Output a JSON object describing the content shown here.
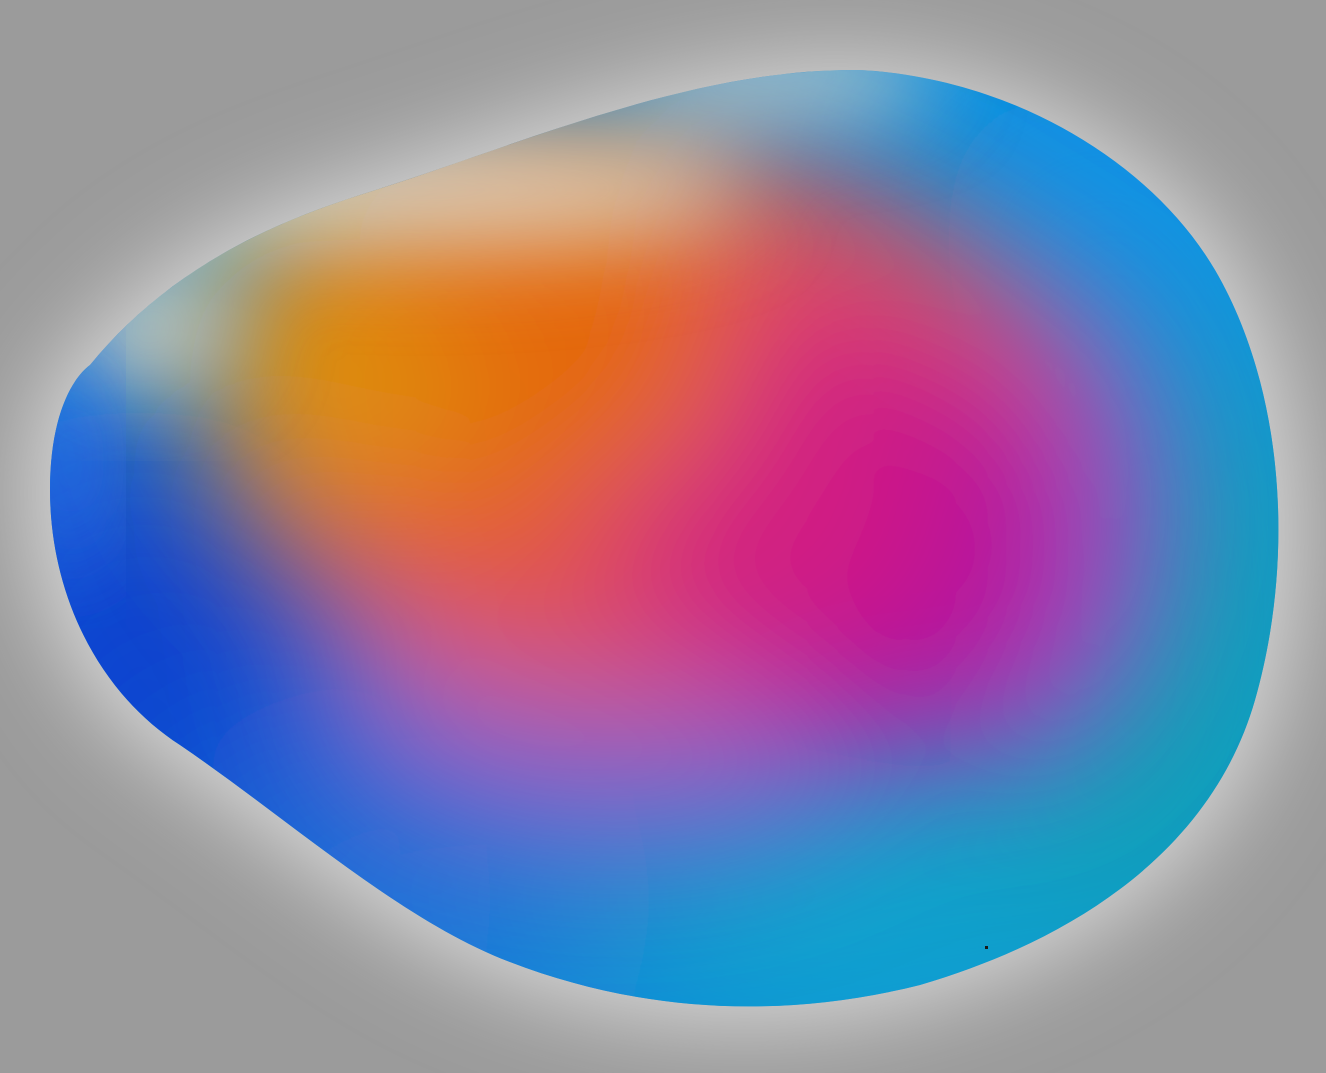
{
  "scene": {
    "subject": "gradient-blob",
    "colors": {
      "background": "#9b9b9b",
      "background_halo": "#d2d2d2",
      "orange": "#e46a05",
      "amber": "#de8f0c",
      "coral": "#e2524c",
      "magenta": "#b5009c",
      "violet": "#8d62c9",
      "royal_blue": "#0a3fcf",
      "sky_blue": "#0a94e6",
      "teal": "#0aa2b4",
      "cream_highlight": "#e8d7bf"
    }
  }
}
